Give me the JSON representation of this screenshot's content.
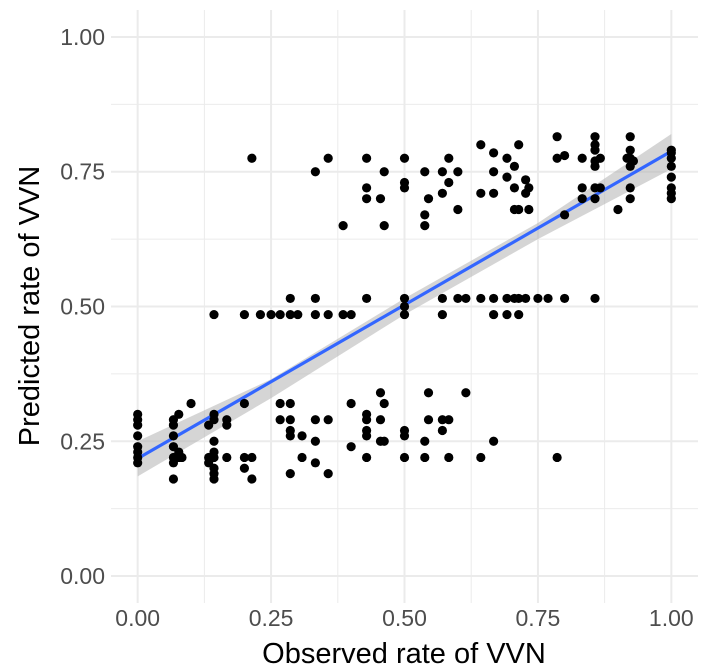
{
  "chart_data": {
    "type": "scatter",
    "title": "",
    "xlabel": "Observed rate of VVN",
    "ylabel": "Predicted rate of VVN",
    "xlim": [
      -0.05,
      1.05
    ],
    "ylim": [
      -0.05,
      1.05
    ],
    "x_ticks": [
      "0.00",
      "0.25",
      "0.50",
      "0.75",
      "1.00"
    ],
    "y_ticks": [
      "0.00",
      "0.25",
      "0.50",
      "0.75",
      "1.00"
    ],
    "grid": true,
    "legend": "none",
    "colors": {
      "points": "#000000",
      "fit_line": "#3366ff",
      "confidence_band": "#b3b3b3",
      "grid": "#ebebeb"
    },
    "fit_line": {
      "x": [
        0.0,
        1.0
      ],
      "y": [
        0.218,
        0.788
      ]
    },
    "confidence_band": {
      "x": [
        0.0,
        0.25,
        0.5,
        0.75,
        1.0
      ],
      "lower": [
        0.185,
        0.33,
        0.485,
        0.625,
        0.755
      ],
      "upper": [
        0.25,
        0.365,
        0.515,
        0.655,
        0.82
      ]
    },
    "points": [
      {
        "x": 0.0,
        "y": 0.21
      },
      {
        "x": 0.0,
        "y": 0.22
      },
      {
        "x": 0.0,
        "y": 0.23
      },
      {
        "x": 0.0,
        "y": 0.24
      },
      {
        "x": 0.0,
        "y": 0.26
      },
      {
        "x": 0.0,
        "y": 0.28
      },
      {
        "x": 0.0,
        "y": 0.29
      },
      {
        "x": 0.0,
        "y": 0.3
      },
      {
        "x": 0.067,
        "y": 0.18
      },
      {
        "x": 0.067,
        "y": 0.21
      },
      {
        "x": 0.067,
        "y": 0.22
      },
      {
        "x": 0.067,
        "y": 0.24
      },
      {
        "x": 0.067,
        "y": 0.26
      },
      {
        "x": 0.067,
        "y": 0.28
      },
      {
        "x": 0.067,
        "y": 0.29
      },
      {
        "x": 0.077,
        "y": 0.22
      },
      {
        "x": 0.077,
        "y": 0.23
      },
      {
        "x": 0.077,
        "y": 0.3
      },
      {
        "x": 0.083,
        "y": 0.22
      },
      {
        "x": 0.1,
        "y": 0.32
      },
      {
        "x": 0.133,
        "y": 0.21
      },
      {
        "x": 0.133,
        "y": 0.22
      },
      {
        "x": 0.133,
        "y": 0.28
      },
      {
        "x": 0.143,
        "y": 0.18
      },
      {
        "x": 0.143,
        "y": 0.19
      },
      {
        "x": 0.143,
        "y": 0.2
      },
      {
        "x": 0.143,
        "y": 0.22
      },
      {
        "x": 0.143,
        "y": 0.23
      },
      {
        "x": 0.143,
        "y": 0.25
      },
      {
        "x": 0.143,
        "y": 0.29
      },
      {
        "x": 0.143,
        "y": 0.3
      },
      {
        "x": 0.143,
        "y": 0.485
      },
      {
        "x": 0.167,
        "y": 0.29
      },
      {
        "x": 0.167,
        "y": 0.22
      },
      {
        "x": 0.167,
        "y": 0.28
      },
      {
        "x": 0.2,
        "y": 0.2
      },
      {
        "x": 0.2,
        "y": 0.22
      },
      {
        "x": 0.2,
        "y": 0.32
      },
      {
        "x": 0.2,
        "y": 0.485
      },
      {
        "x": 0.214,
        "y": 0.18
      },
      {
        "x": 0.214,
        "y": 0.22
      },
      {
        "x": 0.214,
        "y": 0.775
      },
      {
        "x": 0.23,
        "y": 0.485
      },
      {
        "x": 0.25,
        "y": 0.485
      },
      {
        "x": 0.267,
        "y": 0.29
      },
      {
        "x": 0.267,
        "y": 0.32
      },
      {
        "x": 0.267,
        "y": 0.485
      },
      {
        "x": 0.286,
        "y": 0.19
      },
      {
        "x": 0.286,
        "y": 0.26
      },
      {
        "x": 0.286,
        "y": 0.27
      },
      {
        "x": 0.286,
        "y": 0.29
      },
      {
        "x": 0.286,
        "y": 0.32
      },
      {
        "x": 0.286,
        "y": 0.485
      },
      {
        "x": 0.286,
        "y": 0.515
      },
      {
        "x": 0.3,
        "y": 0.485
      },
      {
        "x": 0.308,
        "y": 0.22
      },
      {
        "x": 0.308,
        "y": 0.26
      },
      {
        "x": 0.333,
        "y": 0.21
      },
      {
        "x": 0.333,
        "y": 0.25
      },
      {
        "x": 0.333,
        "y": 0.29
      },
      {
        "x": 0.333,
        "y": 0.485
      },
      {
        "x": 0.333,
        "y": 0.515
      },
      {
        "x": 0.333,
        "y": 0.75
      },
      {
        "x": 0.357,
        "y": 0.19
      },
      {
        "x": 0.357,
        "y": 0.29
      },
      {
        "x": 0.357,
        "y": 0.485
      },
      {
        "x": 0.357,
        "y": 0.775
      },
      {
        "x": 0.385,
        "y": 0.485
      },
      {
        "x": 0.385,
        "y": 0.65
      },
      {
        "x": 0.4,
        "y": 0.24
      },
      {
        "x": 0.4,
        "y": 0.32
      },
      {
        "x": 0.4,
        "y": 0.485
      },
      {
        "x": 0.429,
        "y": 0.22
      },
      {
        "x": 0.429,
        "y": 0.26
      },
      {
        "x": 0.429,
        "y": 0.27
      },
      {
        "x": 0.429,
        "y": 0.29
      },
      {
        "x": 0.429,
        "y": 0.3
      },
      {
        "x": 0.429,
        "y": 0.515
      },
      {
        "x": 0.429,
        "y": 0.7
      },
      {
        "x": 0.429,
        "y": 0.72
      },
      {
        "x": 0.429,
        "y": 0.775
      },
      {
        "x": 0.455,
        "y": 0.25
      },
      {
        "x": 0.455,
        "y": 0.29
      },
      {
        "x": 0.455,
        "y": 0.34
      },
      {
        "x": 0.455,
        "y": 0.7
      },
      {
        "x": 0.462,
        "y": 0.25
      },
      {
        "x": 0.462,
        "y": 0.32
      },
      {
        "x": 0.462,
        "y": 0.65
      },
      {
        "x": 0.462,
        "y": 0.75
      },
      {
        "x": 0.5,
        "y": 0.22
      },
      {
        "x": 0.5,
        "y": 0.26
      },
      {
        "x": 0.5,
        "y": 0.27
      },
      {
        "x": 0.5,
        "y": 0.485
      },
      {
        "x": 0.5,
        "y": 0.5
      },
      {
        "x": 0.5,
        "y": 0.515
      },
      {
        "x": 0.5,
        "y": 0.72
      },
      {
        "x": 0.5,
        "y": 0.73
      },
      {
        "x": 0.5,
        "y": 0.775
      },
      {
        "x": 0.538,
        "y": 0.22
      },
      {
        "x": 0.538,
        "y": 0.25
      },
      {
        "x": 0.538,
        "y": 0.65
      },
      {
        "x": 0.538,
        "y": 0.67
      },
      {
        "x": 0.538,
        "y": 0.75
      },
      {
        "x": 0.545,
        "y": 0.29
      },
      {
        "x": 0.545,
        "y": 0.34
      },
      {
        "x": 0.545,
        "y": 0.7
      },
      {
        "x": 0.571,
        "y": 0.27
      },
      {
        "x": 0.571,
        "y": 0.29
      },
      {
        "x": 0.571,
        "y": 0.485
      },
      {
        "x": 0.571,
        "y": 0.515
      },
      {
        "x": 0.571,
        "y": 0.71
      },
      {
        "x": 0.571,
        "y": 0.75
      },
      {
        "x": 0.583,
        "y": 0.22
      },
      {
        "x": 0.583,
        "y": 0.29
      },
      {
        "x": 0.583,
        "y": 0.73
      },
      {
        "x": 0.583,
        "y": 0.775
      },
      {
        "x": 0.6,
        "y": 0.515
      },
      {
        "x": 0.6,
        "y": 0.68
      },
      {
        "x": 0.6,
        "y": 0.75
      },
      {
        "x": 0.615,
        "y": 0.34
      },
      {
        "x": 0.615,
        "y": 0.515
      },
      {
        "x": 0.643,
        "y": 0.22
      },
      {
        "x": 0.643,
        "y": 0.515
      },
      {
        "x": 0.643,
        "y": 0.71
      },
      {
        "x": 0.643,
        "y": 0.8
      },
      {
        "x": 0.667,
        "y": 0.25
      },
      {
        "x": 0.667,
        "y": 0.485
      },
      {
        "x": 0.667,
        "y": 0.515
      },
      {
        "x": 0.667,
        "y": 0.71
      },
      {
        "x": 0.667,
        "y": 0.75
      },
      {
        "x": 0.667,
        "y": 0.785
      },
      {
        "x": 0.692,
        "y": 0.485
      },
      {
        "x": 0.692,
        "y": 0.515
      },
      {
        "x": 0.692,
        "y": 0.74
      },
      {
        "x": 0.692,
        "y": 0.775
      },
      {
        "x": 0.706,
        "y": 0.515
      },
      {
        "x": 0.706,
        "y": 0.68
      },
      {
        "x": 0.706,
        "y": 0.72
      },
      {
        "x": 0.706,
        "y": 0.76
      },
      {
        "x": 0.714,
        "y": 0.485
      },
      {
        "x": 0.714,
        "y": 0.515
      },
      {
        "x": 0.714,
        "y": 0.68
      },
      {
        "x": 0.714,
        "y": 0.8
      },
      {
        "x": 0.727,
        "y": 0.515
      },
      {
        "x": 0.727,
        "y": 0.71
      },
      {
        "x": 0.727,
        "y": 0.735
      },
      {
        "x": 0.733,
        "y": 0.68
      },
      {
        "x": 0.733,
        "y": 0.72
      },
      {
        "x": 0.75,
        "y": 0.515
      },
      {
        "x": 0.769,
        "y": 0.515
      },
      {
        "x": 0.786,
        "y": 0.22
      },
      {
        "x": 0.786,
        "y": 0.775
      },
      {
        "x": 0.786,
        "y": 0.815
      },
      {
        "x": 0.8,
        "y": 0.515
      },
      {
        "x": 0.8,
        "y": 0.67
      },
      {
        "x": 0.8,
        "y": 0.78
      },
      {
        "x": 0.833,
        "y": 0.7
      },
      {
        "x": 0.833,
        "y": 0.72
      },
      {
        "x": 0.833,
        "y": 0.775
      },
      {
        "x": 0.857,
        "y": 0.515
      },
      {
        "x": 0.857,
        "y": 0.7
      },
      {
        "x": 0.857,
        "y": 0.72
      },
      {
        "x": 0.857,
        "y": 0.76
      },
      {
        "x": 0.857,
        "y": 0.77
      },
      {
        "x": 0.857,
        "y": 0.79
      },
      {
        "x": 0.857,
        "y": 0.8
      },
      {
        "x": 0.857,
        "y": 0.815
      },
      {
        "x": 0.867,
        "y": 0.72
      },
      {
        "x": 0.867,
        "y": 0.775
      },
      {
        "x": 0.9,
        "y": 0.68
      },
      {
        "x": 0.917,
        "y": 0.775
      },
      {
        "x": 0.923,
        "y": 0.7
      },
      {
        "x": 0.923,
        "y": 0.72
      },
      {
        "x": 0.923,
        "y": 0.76
      },
      {
        "x": 0.923,
        "y": 0.775
      },
      {
        "x": 0.923,
        "y": 0.79
      },
      {
        "x": 0.923,
        "y": 0.815
      },
      {
        "x": 0.929,
        "y": 0.77
      },
      {
        "x": 1.0,
        "y": 0.7
      },
      {
        "x": 1.0,
        "y": 0.71
      },
      {
        "x": 1.0,
        "y": 0.72
      },
      {
        "x": 1.0,
        "y": 0.74
      },
      {
        "x": 1.0,
        "y": 0.76
      },
      {
        "x": 1.0,
        "y": 0.775
      },
      {
        "x": 1.0,
        "y": 0.785
      },
      {
        "x": 1.0,
        "y": 0.79
      }
    ]
  }
}
